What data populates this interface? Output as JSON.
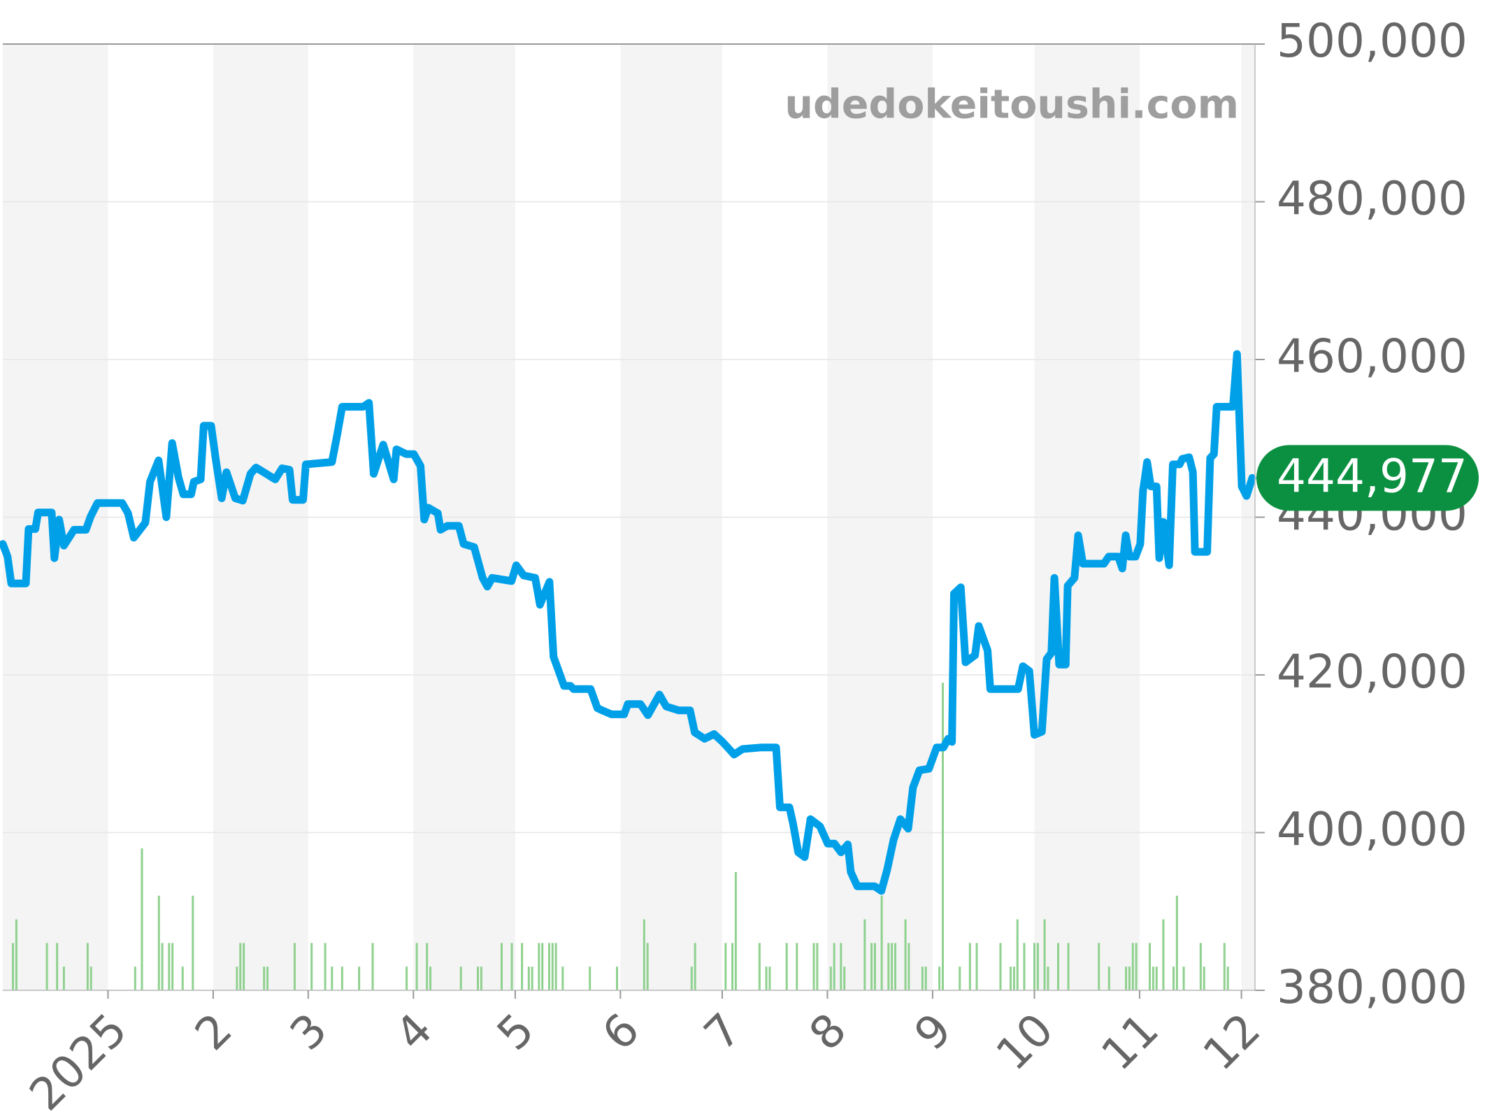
{
  "chart_data": {
    "type": "line",
    "watermark": "udedokeitoushi.com",
    "xlim": [
      0,
      369
    ],
    "xticks": [
      {
        "value": 31,
        "label": "2025"
      },
      {
        "value": 62,
        "label": "2"
      },
      {
        "value": 90,
        "label": "3"
      },
      {
        "value": 121,
        "label": "4"
      },
      {
        "value": 151,
        "label": "5"
      },
      {
        "value": 182,
        "label": "6"
      },
      {
        "value": 212,
        "label": "7"
      },
      {
        "value": 243,
        "label": "8"
      },
      {
        "value": 274,
        "label": "9"
      },
      {
        "value": 304,
        "label": "10"
      },
      {
        "value": 335,
        "label": "11"
      },
      {
        "value": 365,
        "label": "12"
      }
    ],
    "ylim": [
      380000,
      500000
    ],
    "yticks": [
      {
        "value": 380000,
        "label": "380,000"
      },
      {
        "value": 400000,
        "label": "400,000"
      },
      {
        "value": 420000,
        "label": "420,000"
      },
      {
        "value": 440000,
        "label": "440,000"
      },
      {
        "value": 460000,
        "label": "460,000"
      },
      {
        "value": 480000,
        "label": "480,000"
      },
      {
        "value": 500000,
        "label": "500,000"
      }
    ],
    "grid": true,
    "month_bands": true,
    "series": [
      {
        "color": "#00a0e9",
        "x": [
          0,
          1.4,
          2.5,
          6.8,
          7.6,
          9.6,
          10.4,
          14.4,
          15.2,
          16.6,
          18,
          21,
          24.5,
          25.9,
          27.9,
          35.2,
          36.9,
          38.6,
          42,
          43.4,
          45.9,
          48.2,
          49.9,
          51.8,
          53.2,
          55.5,
          56.3,
          58.3,
          59.2,
          61.4,
          62.8,
          64.5,
          65.9,
          68.5,
          70.7,
          73,
          74.6,
          80.3,
          82.3,
          84.5,
          85.4,
          88.5,
          89.3,
          97,
          98.6,
          100,
          106.2,
          107.9,
          109.3,
          112.1,
          115.2,
          116,
          118.9,
          121.1,
          123.1,
          124.2,
          125.4,
          128.2,
          129,
          131,
          134.4,
          135.8,
          138.9,
          141.4,
          142.8,
          144.2,
          149.9,
          151.3,
          153.5,
          156.9,
          158.3,
          161.1,
          162.3,
          165.4,
          167.3,
          168.2,
          173.2,
          175.2,
          176.6,
          179.4,
          183.1,
          184.2,
          187.9,
          190.1,
          193.5,
          195.5,
          199.2,
          202.5,
          203.9,
          206.8,
          209.6,
          212.1,
          215.5,
          218,
          223.7,
          227.9,
          229,
          231.8,
          232.9,
          234.4,
          236.3,
          238,
          240.8,
          243.1,
          245.1,
          247,
          249,
          249.9,
          251.8,
          256.9,
          258.9,
          260.6,
          262.5,
          264.5,
          266.8,
          268.2,
          270.1,
          272.9,
          275.2,
          277.2,
          278.6,
          279.7,
          280.3,
          282.3,
          283.7,
          286.5,
          287.6,
          290.2,
          291,
          296.4,
          299.2,
          300.6,
          302.5,
          304,
          306.2,
          307.6,
          309,
          309.9,
          311.3,
          313.2,
          313.8,
          315.8,
          316.9,
          318.3,
          320.8,
          324.5,
          325.9,
          328.7,
          329.9,
          330.9,
          332,
          333.8,
          335.2,
          336,
          337.2,
          338.3,
          340,
          340.8,
          342,
          343.7,
          344.8,
          346.8,
          347.6,
          349.6,
          350.7,
          351.3,
          354.9,
          355.8,
          356.9,
          357.7,
          362.5,
          363.7,
          365.1,
          366.5,
          368.2
        ],
        "values": [
          436600,
          435000,
          431600,
          431600,
          438500,
          438500,
          440600,
          440600,
          434800,
          439700,
          436400,
          438400,
          438400,
          440100,
          441800,
          441800,
          440500,
          437400,
          439300,
          444500,
          447200,
          440000,
          449400,
          445000,
          442900,
          442900,
          444500,
          444800,
          451600,
          451600,
          447200,
          442400,
          445700,
          442400,
          442100,
          445500,
          446300,
          444800,
          446200,
          446000,
          442200,
          442200,
          446700,
          447000,
          450600,
          454000,
          454000,
          454500,
          445500,
          449200,
          444800,
          448600,
          448000,
          448000,
          446500,
          439700,
          441200,
          440500,
          438400,
          438900,
          438900,
          436600,
          436200,
          432300,
          431200,
          432300,
          431900,
          433900,
          432600,
          432300,
          428900,
          431800,
          422300,
          418600,
          418600,
          418200,
          418200,
          415800,
          415500,
          415000,
          415000,
          416300,
          416300,
          414900,
          417500,
          416000,
          415500,
          415500,
          412700,
          411900,
          412500,
          411500,
          409900,
          410600,
          410800,
          410800,
          403200,
          403200,
          401100,
          397500,
          396900,
          401700,
          400800,
          398600,
          398600,
          397500,
          398500,
          395000,
          393200,
          393200,
          392600,
          395300,
          399100,
          401700,
          400500,
          405700,
          407900,
          408100,
          410800,
          410800,
          411900,
          411500,
          430300,
          431100,
          421600,
          422500,
          426200,
          423100,
          418200,
          418200,
          418200,
          421100,
          420500,
          412400,
          412800,
          422000,
          422800,
          432300,
          421300,
          421300,
          431300,
          432300,
          437700,
          434100,
          434100,
          434100,
          435000,
          435000,
          433500,
          437700,
          435000,
          435000,
          436600,
          443300,
          447000,
          443900,
          443900,
          434800,
          439400,
          433900,
          446700,
          446700,
          447400,
          447600,
          445700,
          435600,
          435600,
          447500,
          448000,
          454000,
          454000,
          460700,
          443900,
          442700,
          444977
        ]
      }
    ],
    "volume": {
      "color": "#8fd18f",
      "vlim": [
        0,
        40
      ],
      "x": [
        3,
        4,
        13,
        16,
        18,
        25,
        26,
        39,
        41,
        46,
        47,
        49,
        50,
        53,
        56,
        69,
        70,
        71,
        77,
        78,
        86,
        91,
        95,
        97,
        100,
        105,
        109,
        119,
        122,
        125,
        126,
        135,
        140,
        141,
        147,
        150,
        153,
        155,
        156,
        158,
        159,
        161,
        162,
        163,
        165,
        173,
        181,
        189,
        190,
        203,
        204,
        213,
        215,
        216,
        223,
        225,
        226,
        231,
        234,
        239,
        240,
        244,
        245,
        247,
        248,
        254,
        256,
        257,
        259,
        261,
        262,
        263,
        266,
        267,
        271,
        272,
        276,
        277,
        282,
        285,
        287,
        294,
        297,
        298,
        299,
        301,
        304,
        305,
        307,
        308,
        311,
        314,
        323,
        326,
        331,
        332,
        333,
        334,
        338,
        339,
        340,
        342,
        345,
        346,
        348,
        353,
        354,
        360,
        361
      ],
      "values": [
        2,
        3,
        2,
        2,
        1,
        2,
        1,
        1,
        6,
        4,
        2,
        2,
        2,
        1,
        4,
        1,
        2,
        2,
        1,
        1,
        2,
        2,
        2,
        1,
        1,
        1,
        2,
        1,
        2,
        2,
        1,
        1,
        1,
        1,
        2,
        2,
        2,
        1,
        1,
        2,
        2,
        2,
        2,
        2,
        1,
        1,
        1,
        3,
        2,
        1,
        2,
        2,
        2,
        5,
        2,
        1,
        1,
        2,
        2,
        2,
        2,
        1,
        2,
        2,
        1,
        3,
        2,
        2,
        4,
        2,
        2,
        2,
        3,
        2,
        1,
        1,
        1,
        13,
        1,
        2,
        2,
        2,
        1,
        1,
        3,
        2,
        2,
        2,
        3,
        1,
        2,
        2,
        2,
        1,
        1,
        1,
        2,
        2,
        2,
        1,
        1,
        3,
        1,
        4,
        1,
        2,
        1,
        2,
        1
      ]
    },
    "current_price": {
      "value": 444977,
      "label": "444,977"
    },
    "current_color": "#0a9040"
  }
}
